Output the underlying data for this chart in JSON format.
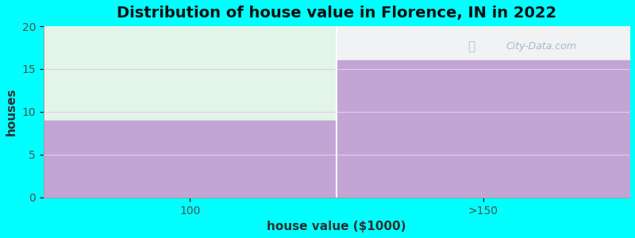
{
  "title": "Distribution of house value in Florence, IN in 2022",
  "xlabel": "house value ($1000)",
  "ylabel": "houses",
  "categories": [
    "100",
    ">150"
  ],
  "values": [
    9,
    16
  ],
  "ylim": [
    0,
    20
  ],
  "yticks": [
    0,
    5,
    10,
    15,
    20
  ],
  "bar_color": "#C3A5D5",
  "top_color_left": "#E2F5E8",
  "top_color_right": "#F0F2F4",
  "plot_bg_color": "#FFFFFF",
  "background_color": "#00FFFF",
  "title_fontsize": 14,
  "label_fontsize": 11,
  "tick_fontsize": 10,
  "watermark": "City-Data.com"
}
